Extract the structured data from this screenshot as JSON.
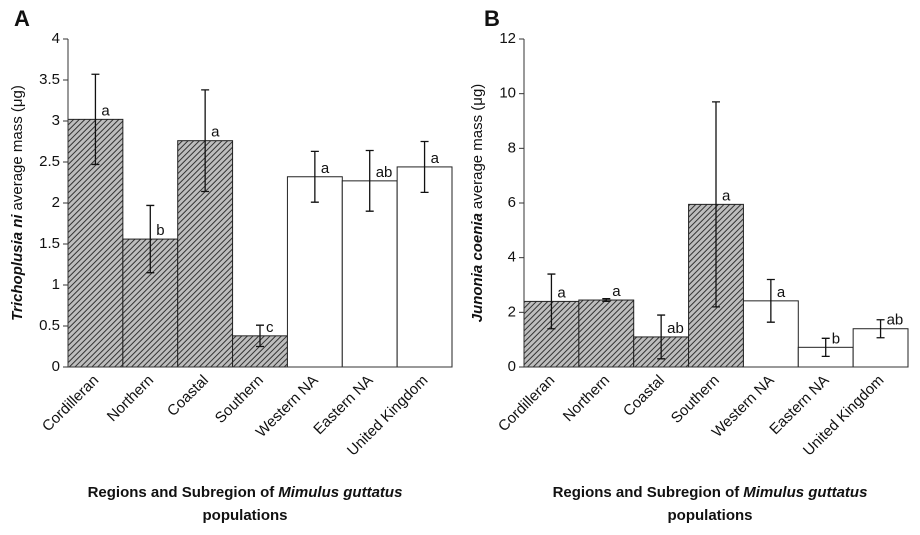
{
  "chart_data": [
    {
      "type": "bar",
      "panel": "A",
      "ylabel": {
        "species": "Trichoplusia ni",
        "rest": "average mass (μg)"
      },
      "xlabel": {
        "start": "Regions and Subregion of",
        "species": "Mimulus guttatus",
        "end": "populations"
      },
      "categories": [
        "Cordilleran",
        "Northern",
        "Coastal",
        "Southern",
        "Western NA",
        "Eastern NA",
        "United Kingdom"
      ],
      "values": [
        3.02,
        1.56,
        2.76,
        0.38,
        2.32,
        2.27,
        2.44
      ],
      "errors": [
        0.55,
        0.41,
        0.62,
        0.13,
        0.31,
        0.37,
        0.31
      ],
      "labels": [
        "a",
        "b",
        "a",
        "c",
        "a",
        "ab",
        "a"
      ],
      "hatched": [
        true,
        true,
        true,
        true,
        false,
        false,
        false
      ],
      "ylim": [
        0,
        4
      ],
      "yticks": [
        0,
        0.5,
        1,
        1.5,
        2,
        2.5,
        3,
        3.5,
        4
      ]
    },
    {
      "type": "bar",
      "panel": "B",
      "ylabel": {
        "species": "Junonia coenia",
        "rest": "average mass (μg)"
      },
      "xlabel": {
        "start": "Regions and Subregion of",
        "species": "Mimulus guttatus",
        "end": "populations"
      },
      "categories": [
        "Cordilleran",
        "Northern",
        "Coastal",
        "Southern",
        "Western NA",
        "Eastern NA",
        "United Kingdom"
      ],
      "values": [
        2.4,
        2.45,
        1.1,
        5.95,
        2.42,
        0.72,
        1.4
      ],
      "errors": [
        1.0,
        0.05,
        0.8,
        3.75,
        0.78,
        0.33,
        0.33
      ],
      "labels": [
        "a",
        "a",
        "ab",
        "a",
        "a",
        "b",
        "ab"
      ],
      "hatched": [
        true,
        true,
        true,
        true,
        false,
        false,
        false
      ],
      "ylim": [
        0,
        12
      ],
      "yticks": [
        0,
        2,
        4,
        6,
        8,
        10,
        12
      ]
    }
  ]
}
